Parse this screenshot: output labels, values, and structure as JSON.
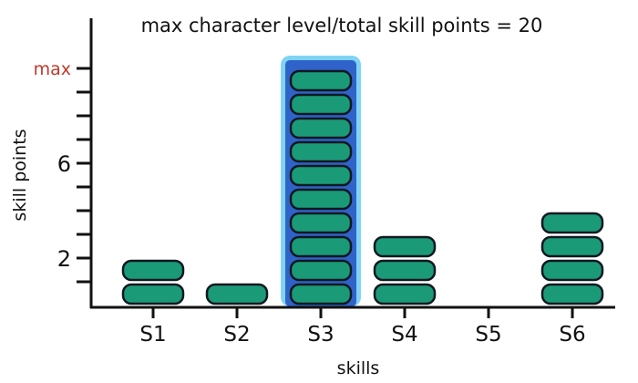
{
  "chart_data": {
    "type": "bar",
    "title": "max character level/total skill points = 20",
    "xlabel": "skills",
    "ylabel": "skill points",
    "categories": [
      "S1",
      "S2",
      "S3",
      "S4",
      "S5",
      "S6"
    ],
    "values": [
      2,
      1,
      10,
      3,
      0,
      4
    ],
    "ylim": [
      0,
      10
    ],
    "yticks": [
      {
        "value": 2,
        "label": "2"
      },
      {
        "value": 6,
        "label": "6"
      },
      {
        "value": 10,
        "label": "max"
      }
    ],
    "highlight_category": "S3",
    "grid": false,
    "colors": {
      "bar": "#1b9a78",
      "bar_outline": "#101820",
      "highlight_fill": "#2f63c9",
      "highlight_glow": "#7fd4f5",
      "axis": "#111111",
      "max_label": "#c0392b"
    }
  }
}
